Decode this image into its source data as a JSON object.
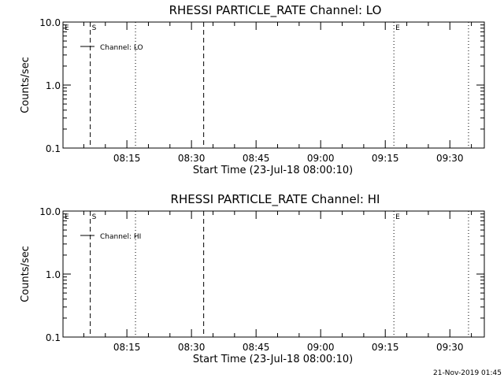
{
  "footer": {
    "timestamp": "21-Nov-2019 01:45"
  },
  "chart_data": [
    {
      "type": "line",
      "title": "RHESSI PARTICLE_RATE Channel: LO",
      "xlabel": "Start Time (23-Jul-18 08:00:10)",
      "ylabel": "Counts/sec",
      "y_scale": "log",
      "ylim": [
        0.1,
        10.0
      ],
      "y_ticks": [
        "0.1",
        "1.0",
        "10.0"
      ],
      "xlim": [
        "08:00:10",
        "09:38:00"
      ],
      "x_ticks": [
        "08:15",
        "08:30",
        "08:45",
        "09:00",
        "09:15",
        "09:30"
      ],
      "legend": {
        "label": "Channel: LO",
        "position": "top-left"
      },
      "series": [
        {
          "name": "Channel: LO",
          "points": []
        }
      ],
      "markers": [
        {
          "time": "08:00:10",
          "label": "E",
          "style": "none"
        },
        {
          "time": "08:06:30",
          "label": "S",
          "style": "dashed"
        },
        {
          "time": "08:17:00",
          "label": "",
          "style": "dotted"
        },
        {
          "time": "08:32:50",
          "label": "",
          "style": "dashed"
        },
        {
          "time": "09:17:00",
          "label": "E",
          "style": "dotted"
        },
        {
          "time": "09:34:20",
          "label": "",
          "style": "dotted"
        }
      ]
    },
    {
      "type": "line",
      "title": "RHESSI PARTICLE_RATE Channel: HI",
      "xlabel": "Start Time (23-Jul-18 08:00:10)",
      "ylabel": "Counts/sec",
      "y_scale": "log",
      "ylim": [
        0.1,
        10.0
      ],
      "y_ticks": [
        "0.1",
        "1.0",
        "10.0"
      ],
      "xlim": [
        "08:00:10",
        "09:38:00"
      ],
      "x_ticks": [
        "08:15",
        "08:30",
        "08:45",
        "09:00",
        "09:15",
        "09:30"
      ],
      "legend": {
        "label": "Channel: HI",
        "position": "top-left"
      },
      "series": [
        {
          "name": "Channel: HI",
          "points": []
        }
      ],
      "markers": [
        {
          "time": "08:00:10",
          "label": "E",
          "style": "none"
        },
        {
          "time": "08:06:30",
          "label": "S",
          "style": "dashed"
        },
        {
          "time": "08:17:00",
          "label": "",
          "style": "dotted"
        },
        {
          "time": "08:32:50",
          "label": "",
          "style": "dashed"
        },
        {
          "time": "09:17:00",
          "label": "E",
          "style": "dotted"
        },
        {
          "time": "09:34:20",
          "label": "",
          "style": "dotted"
        }
      ]
    }
  ]
}
